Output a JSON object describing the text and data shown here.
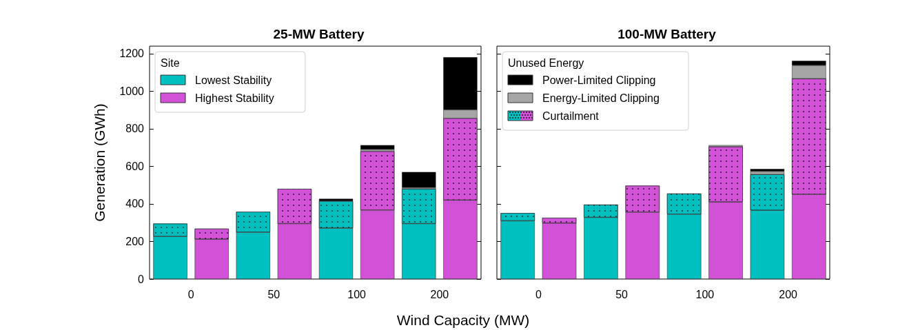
{
  "chart_data": [
    {
      "type": "bar",
      "title": "25-MW Battery",
      "xlabel": "Wind Capacity (MW)",
      "ylabel": "Generation (GWh)",
      "legend_title": "Site",
      "legend": "top left",
      "stacked": true,
      "grid": false,
      "categories": [
        "0",
        null,
        "50",
        null,
        "100",
        null,
        "200",
        null
      ],
      "ylim": [
        0,
        1240
      ],
      "yticks": [
        0,
        200,
        400,
        600,
        800,
        1000,
        1200
      ],
      "series": [
        {
          "name": "Lowest Stability",
          "color": "#00bfbf",
          "values": [
            227,
            null,
            249,
            null,
            271,
            null,
            295,
            null
          ]
        },
        {
          "name": "Highest Stability",
          "color": "#d152d6",
          "values": [
            null,
            212,
            null,
            295,
            null,
            367,
            null,
            420
          ]
        },
        {
          "colors": [
            "#00bfbf",
            "#d152d6",
            "#00bfbf",
            "#d152d6",
            "#00bfbf",
            "#d152d6",
            "#00bfbf",
            "#d152d6"
          ],
          "values": [
            68,
            56,
            109,
            185,
            144,
            313,
            185,
            436
          ]
        },
        {
          "color": "#a6a6a6",
          "values": [
            null,
            null,
            null,
            null,
            null,
            10,
            7,
            45
          ]
        },
        {
          "color": "#000000",
          "values": [
            null,
            null,
            null,
            null,
            12,
            23,
            83,
            280
          ]
        }
      ]
    },
    {
      "type": "bar",
      "title": "100-MW Battery",
      "legend_title": "Unused Energy",
      "legend": "top left",
      "stacked": true,
      "grid": false,
      "tick_labels": "x",
      "categories": [
        "0",
        null,
        "50",
        null,
        "100",
        null,
        "200",
        null
      ],
      "ylim": [
        0,
        1240
      ],
      "yticks": [
        0,
        200,
        400,
        600,
        800,
        1000,
        1200
      ],
      "series": [
        {
          "colors": [
            "#00bfbf",
            "#d152d6",
            "#00bfbf",
            "#d152d6",
            "#00bfbf",
            "#d152d6",
            "#00bfbf",
            "#d152d6"
          ],
          "values": [
            310,
            298,
            328,
            356,
            345,
            410,
            366,
            451
          ]
        },
        {
          "name": "Curtailment",
          "colors": [
            "#00bfbf",
            "#d152d6",
            "#00bfbf",
            "#d152d6",
            "#00bfbf",
            "#d152d6",
            "#00bfbf",
            "#d152d6"
          ],
          "values": [
            41,
            28,
            68,
            141,
            110,
            295,
            191,
            616
          ]
        },
        {
          "name": "Energy-Limited Clipping",
          "color": "#a6a6a6",
          "values": [
            null,
            null,
            null,
            null,
            null,
            8,
            16,
            70
          ]
        },
        {
          "name": "Power-Limited Clipping",
          "color": "#000000",
          "values": [
            null,
            null,
            null,
            null,
            null,
            null,
            13,
            25
          ]
        }
      ]
    }
  ]
}
